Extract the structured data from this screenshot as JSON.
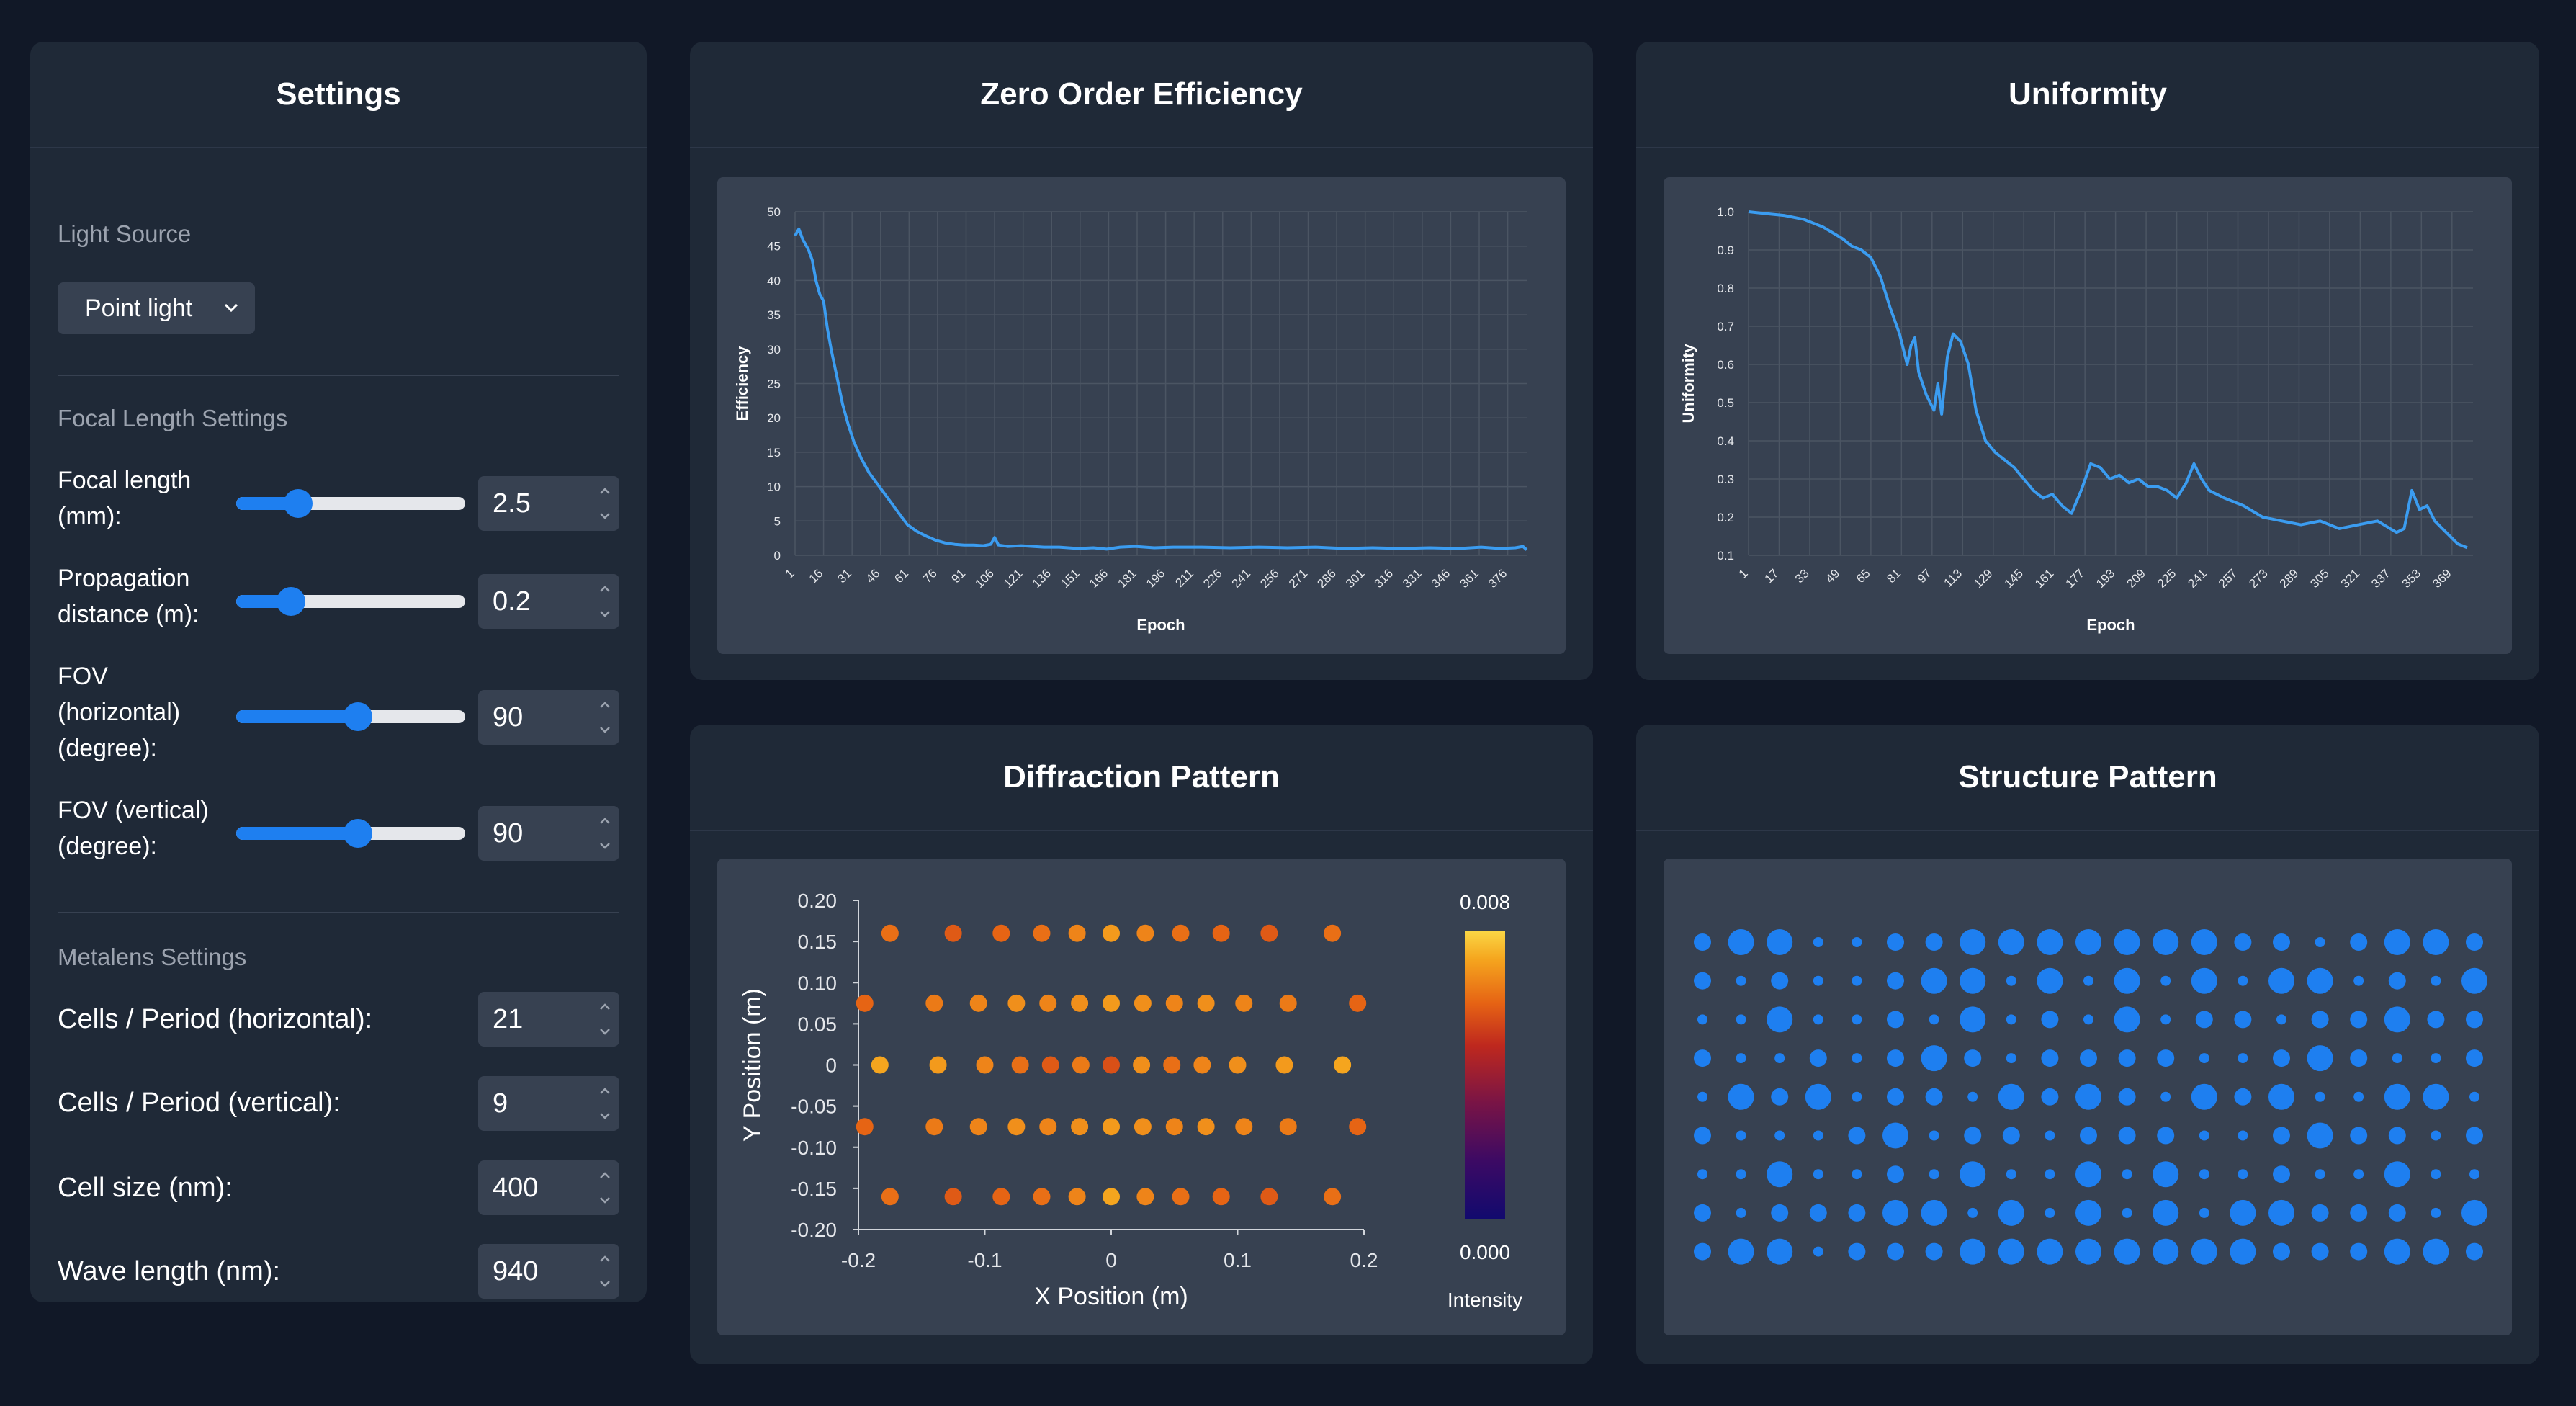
{
  "settings": {
    "title": "Settings",
    "light_source": {
      "section": "Light Source",
      "selected": "Point light",
      "icon": "chevron-down-icon"
    },
    "focal": {
      "section": "Focal Length Settings",
      "rows": [
        {
          "label_lines": [
            "Focal length",
            "(mm):"
          ],
          "value": "2.5",
          "slider_fraction": 0.27
        },
        {
          "label_lines": [
            "Propagation",
            "distance (m):"
          ],
          "value": "0.2",
          "slider_fraction": 0.24
        },
        {
          "label_lines": [
            "FOV",
            "(horizontal)",
            "(degree):"
          ],
          "value": "90",
          "slider_fraction": 0.53
        },
        {
          "label_lines": [
            "FOV (vertical)",
            "(degree):"
          ],
          "value": "90",
          "slider_fraction": 0.53
        }
      ]
    },
    "metalens": {
      "section": "Metalens Settings",
      "rows": [
        {
          "label": "Cells / Period (horizontal):",
          "value": "21"
        },
        {
          "label": "Cells / Period (vertical):",
          "value": "9"
        },
        {
          "label": "Cell size (nm):",
          "value": "400"
        },
        {
          "label": "Wave length (nm):",
          "value": "940"
        }
      ]
    }
  },
  "panels": {
    "zero_order": "Zero Order Efficiency",
    "uniformity": "Uniformity",
    "diffraction": "Diffraction Pattern",
    "structure": "Structure Pattern"
  },
  "colors": {
    "accent": "#1e7ff0",
    "line": "#3b9cf0",
    "panel": "#1f2937",
    "inner": "#374151"
  },
  "chart_data": [
    {
      "id": "zero_order",
      "type": "line",
      "title": "Zero Order Efficiency",
      "xlabel": "Epoch",
      "ylabel": "Efficiency",
      "ylim": [
        0,
        50
      ],
      "yticks": [
        0,
        5,
        10,
        15,
        20,
        25,
        30,
        35,
        40,
        45,
        50
      ],
      "xticks": [
        1,
        16,
        31,
        46,
        61,
        76,
        91,
        106,
        121,
        136,
        151,
        166,
        181,
        196,
        211,
        226,
        241,
        256,
        271,
        286,
        301,
        316,
        331,
        346,
        361,
        376
      ],
      "xlim": [
        1,
        386
      ],
      "grid": true,
      "series": [
        {
          "name": "Efficiency",
          "points": [
            [
              1,
              46.5
            ],
            [
              3,
              47.5
            ],
            [
              5,
              46
            ],
            [
              8,
              44.5
            ],
            [
              10,
              43
            ],
            [
              12,
              40
            ],
            [
              14,
              38
            ],
            [
              16,
              37
            ],
            [
              18,
              33
            ],
            [
              20,
              30
            ],
            [
              23,
              26
            ],
            [
              26,
              22
            ],
            [
              29,
              19
            ],
            [
              32,
              16.5
            ],
            [
              36,
              14
            ],
            [
              40,
              12
            ],
            [
              44,
              10.5
            ],
            [
              48,
              9
            ],
            [
              52,
              7.5
            ],
            [
              56,
              6
            ],
            [
              60,
              4.5
            ],
            [
              65,
              3.5
            ],
            [
              70,
              2.8
            ],
            [
              75,
              2.2
            ],
            [
              80,
              1.8
            ],
            [
              85,
              1.6
            ],
            [
              90,
              1.5
            ],
            [
              95,
              1.5
            ],
            [
              100,
              1.4
            ],
            [
              104,
              1.6
            ],
            [
              106,
              2.6
            ],
            [
              108,
              1.5
            ],
            [
              113,
              1.3
            ],
            [
              120,
              1.4
            ],
            [
              126,
              1.3
            ],
            [
              132,
              1.2
            ],
            [
              140,
              1.2
            ],
            [
              150,
              1.0
            ],
            [
              158,
              1.1
            ],
            [
              165,
              0.9
            ],
            [
              172,
              1.2
            ],
            [
              180,
              1.3
            ],
            [
              190,
              1.1
            ],
            [
              200,
              1.2
            ],
            [
              215,
              1.2
            ],
            [
              230,
              1.1
            ],
            [
              245,
              1.2
            ],
            [
              260,
              1.1
            ],
            [
              275,
              1.2
            ],
            [
              290,
              1.0
            ],
            [
              305,
              1.1
            ],
            [
              320,
              1.0
            ],
            [
              335,
              1.1
            ],
            [
              350,
              1.0
            ],
            [
              362,
              1.2
            ],
            [
              372,
              1.0
            ],
            [
              380,
              1.1
            ],
            [
              384,
              1.3
            ],
            [
              386,
              0.8
            ]
          ]
        }
      ]
    },
    {
      "id": "uniformity",
      "type": "line",
      "title": "Uniformity",
      "xlabel": "Epoch",
      "ylabel": "Uniformity",
      "ylim": [
        0.1,
        1.0
      ],
      "yticks": [
        0.1,
        0.2,
        0.3,
        0.4,
        0.5,
        0.6,
        0.7,
        0.8,
        0.9,
        1.0
      ],
      "xticks": [
        1,
        17,
        33,
        49,
        65,
        81,
        97,
        113,
        129,
        145,
        161,
        177,
        193,
        209,
        225,
        241,
        257,
        273,
        289,
        305,
        321,
        337,
        353,
        369
      ],
      "xlim": [
        1,
        380
      ],
      "grid": true,
      "series": [
        {
          "name": "Uniformity",
          "points": [
            [
              1,
              1.0
            ],
            [
              10,
              0.995
            ],
            [
              20,
              0.99
            ],
            [
              30,
              0.98
            ],
            [
              40,
              0.96
            ],
            [
              50,
              0.93
            ],
            [
              55,
              0.91
            ],
            [
              60,
              0.9
            ],
            [
              65,
              0.88
            ],
            [
              70,
              0.83
            ],
            [
              75,
              0.75
            ],
            [
              80,
              0.68
            ],
            [
              84,
              0.6
            ],
            [
              86,
              0.65
            ],
            [
              88,
              0.67
            ],
            [
              90,
              0.58
            ],
            [
              94,
              0.52
            ],
            [
              98,
              0.48
            ],
            [
              100,
              0.55
            ],
            [
              102,
              0.47
            ],
            [
              105,
              0.62
            ],
            [
              108,
              0.68
            ],
            [
              112,
              0.66
            ],
            [
              116,
              0.6
            ],
            [
              120,
              0.48
            ],
            [
              125,
              0.4
            ],
            [
              130,
              0.37
            ],
            [
              135,
              0.35
            ],
            [
              140,
              0.33
            ],
            [
              145,
              0.3
            ],
            [
              150,
              0.27
            ],
            [
              155,
              0.25
            ],
            [
              160,
              0.26
            ],
            [
              165,
              0.23
            ],
            [
              170,
              0.21
            ],
            [
              175,
              0.27
            ],
            [
              180,
              0.34
            ],
            [
              185,
              0.33
            ],
            [
              190,
              0.3
            ],
            [
              195,
              0.31
            ],
            [
              200,
              0.29
            ],
            [
              205,
              0.3
            ],
            [
              210,
              0.28
            ],
            [
              215,
              0.28
            ],
            [
              220,
              0.27
            ],
            [
              225,
              0.25
            ],
            [
              230,
              0.29
            ],
            [
              234,
              0.34
            ],
            [
              238,
              0.3
            ],
            [
              242,
              0.27
            ],
            [
              250,
              0.25
            ],
            [
              260,
              0.23
            ],
            [
              270,
              0.2
            ],
            [
              280,
              0.19
            ],
            [
              290,
              0.18
            ],
            [
              300,
              0.19
            ],
            [
              310,
              0.17
            ],
            [
              320,
              0.18
            ],
            [
              330,
              0.19
            ],
            [
              340,
              0.16
            ],
            [
              344,
              0.17
            ],
            [
              348,
              0.27
            ],
            [
              352,
              0.22
            ],
            [
              356,
              0.23
            ],
            [
              360,
              0.19
            ],
            [
              366,
              0.16
            ],
            [
              372,
              0.13
            ],
            [
              377,
              0.12
            ]
          ]
        }
      ]
    },
    {
      "id": "diffraction",
      "type": "scatter",
      "title": "Diffraction Pattern",
      "xlabel": "X Position (m)",
      "ylabel": "Y Position (m)",
      "xlim": [
        -0.2,
        0.2
      ],
      "ylim": [
        -0.2,
        0.2
      ],
      "xticks": [
        -0.2,
        -0.1,
        0,
        0.1,
        0.2
      ],
      "xtick_labels": [
        "-0.2",
        "-0.1",
        "0",
        "0.1",
        "0.2"
      ],
      "yticks": [
        -0.2,
        -0.15,
        -0.1,
        -0.05,
        0,
        0.05,
        0.1,
        0.15,
        0.2
      ],
      "ytick_labels": [
        "-0.20",
        "-0.15",
        "-0.10",
        "-0.05",
        "0",
        "0.05",
        "0.10",
        "0.15",
        "0.20"
      ],
      "colorbar": {
        "label": "Intensity",
        "min": "0.000",
        "max": "0.008",
        "min_value": 0.0,
        "max_value": 0.008
      },
      "rows": [
        {
          "y": 0.16,
          "x": [
            -0.175,
            -0.125,
            -0.087,
            -0.055,
            -0.027,
            0.0,
            0.027,
            0.055,
            0.087,
            0.125,
            0.175
          ],
          "intensity": [
            0.0062,
            0.0058,
            0.006,
            0.0062,
            0.0066,
            0.007,
            0.0066,
            0.0062,
            0.006,
            0.0058,
            0.0062
          ]
        },
        {
          "y": 0.075,
          "x": [
            -0.195,
            -0.14,
            -0.105,
            -0.075,
            -0.05,
            -0.025,
            0.0,
            0.025,
            0.05,
            0.075,
            0.105,
            0.14,
            0.195
          ],
          "intensity": [
            0.006,
            0.0064,
            0.0066,
            0.0068,
            0.0066,
            0.0068,
            0.007,
            0.0068,
            0.0066,
            0.0068,
            0.0066,
            0.0064,
            0.006
          ]
        },
        {
          "y": 0.0,
          "x": [
            -0.183,
            -0.137,
            -0.1,
            -0.072,
            -0.048,
            -0.024,
            0.0,
            0.024,
            0.048,
            0.072,
            0.1,
            0.137,
            0.183
          ],
          "intensity": [
            0.0072,
            0.007,
            0.0066,
            0.0062,
            0.0058,
            0.0064,
            0.0056,
            0.0068,
            0.0062,
            0.0066,
            0.0068,
            0.007,
            0.0072
          ]
        },
        {
          "y": -0.075,
          "x": [
            -0.195,
            -0.14,
            -0.105,
            -0.075,
            -0.05,
            -0.025,
            0.0,
            0.025,
            0.05,
            0.075,
            0.105,
            0.14,
            0.195
          ],
          "intensity": [
            0.006,
            0.0064,
            0.0066,
            0.0068,
            0.0066,
            0.0068,
            0.007,
            0.0068,
            0.0066,
            0.0068,
            0.0066,
            0.0064,
            0.006
          ]
        },
        {
          "y": -0.16,
          "x": [
            -0.175,
            -0.125,
            -0.087,
            -0.055,
            -0.027,
            0.0,
            0.027,
            0.055,
            0.087,
            0.125,
            0.175
          ],
          "intensity": [
            0.0062,
            0.0058,
            0.006,
            0.0062,
            0.0066,
            0.0072,
            0.0066,
            0.0062,
            0.006,
            0.0058,
            0.0062
          ]
        }
      ]
    },
    {
      "id": "structure",
      "type": "heatmap",
      "title": "Structure Pattern",
      "description_values": "cell pillar size index 0=small 1=medium 2=large",
      "columns": 21,
      "rows_count": 9,
      "grid": [
        [
          1,
          2,
          2,
          0,
          0,
          1,
          1,
          2,
          2,
          2,
          2,
          2,
          2,
          2,
          1,
          1,
          0,
          1,
          2,
          2,
          1
        ],
        [
          1,
          0,
          1,
          0,
          0,
          1,
          2,
          2,
          0,
          2,
          0,
          2,
          0,
          2,
          0,
          2,
          2,
          0,
          1,
          0,
          2
        ],
        [
          0,
          0,
          2,
          0,
          0,
          1,
          0,
          2,
          0,
          1,
          0,
          2,
          0,
          1,
          1,
          0,
          1,
          1,
          2,
          1,
          1
        ],
        [
          1,
          0,
          0,
          1,
          0,
          1,
          2,
          1,
          0,
          1,
          1,
          1,
          1,
          0,
          0,
          1,
          2,
          1,
          0,
          0,
          1
        ],
        [
          0,
          2,
          1,
          2,
          0,
          1,
          1,
          0,
          2,
          1,
          2,
          1,
          0,
          2,
          1,
          2,
          0,
          0,
          2,
          2,
          0
        ],
        [
          1,
          0,
          0,
          0,
          1,
          2,
          0,
          1,
          1,
          0,
          1,
          1,
          1,
          0,
          0,
          1,
          2,
          1,
          1,
          0,
          1
        ],
        [
          0,
          0,
          2,
          0,
          0,
          1,
          0,
          2,
          0,
          0,
          2,
          0,
          2,
          0,
          0,
          1,
          0,
          0,
          2,
          0,
          0
        ],
        [
          1,
          0,
          1,
          1,
          1,
          2,
          2,
          0,
          2,
          0,
          2,
          0,
          2,
          0,
          2,
          2,
          1,
          1,
          1,
          0,
          2
        ],
        [
          1,
          2,
          2,
          0,
          1,
          1,
          1,
          2,
          2,
          2,
          2,
          2,
          2,
          2,
          2,
          1,
          1,
          1,
          2,
          2,
          1
        ]
      ]
    }
  ]
}
